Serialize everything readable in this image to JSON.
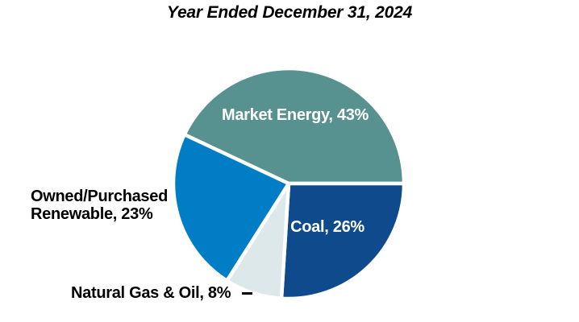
{
  "title": "Year Ended December 31, 2024",
  "chart_data": {
    "type": "pie",
    "title": "Year Ended December 31, 2024",
    "start_angle_deg": 295.2,
    "legend_position": "none",
    "data_labels": "category name and percentage, on or beside slices",
    "background_color": "#ffffff",
    "separator_color": "#ffffff",
    "slices": [
      {
        "id": "market-energy",
        "label": "Market Energy",
        "value": 43,
        "display": "Market Energy, 43%",
        "color": "#579291",
        "label_color": "#ffffff",
        "label_placement": "inside"
      },
      {
        "id": "coal",
        "label": "Coal",
        "value": 26,
        "display": "Coal, 26%",
        "color": "#0F4A8D",
        "label_color": "#ffffff",
        "label_placement": "inside"
      },
      {
        "id": "natural-gas-oil",
        "label": "Natural Gas & Oil",
        "value": 8,
        "display": "Natural Gas & Oil, 8%",
        "color": "#DDE8EA",
        "label_color": "#000000",
        "label_placement": "outside-callout"
      },
      {
        "id": "owned-purchased-renewable",
        "label": "Owned/Purchased Renewable",
        "value": 23,
        "display_line1": "Owned/Purchased",
        "display_line2": "Renewable, 23%",
        "color": "#007DC4",
        "label_color": "#000000",
        "label_placement": "outside"
      }
    ]
  }
}
